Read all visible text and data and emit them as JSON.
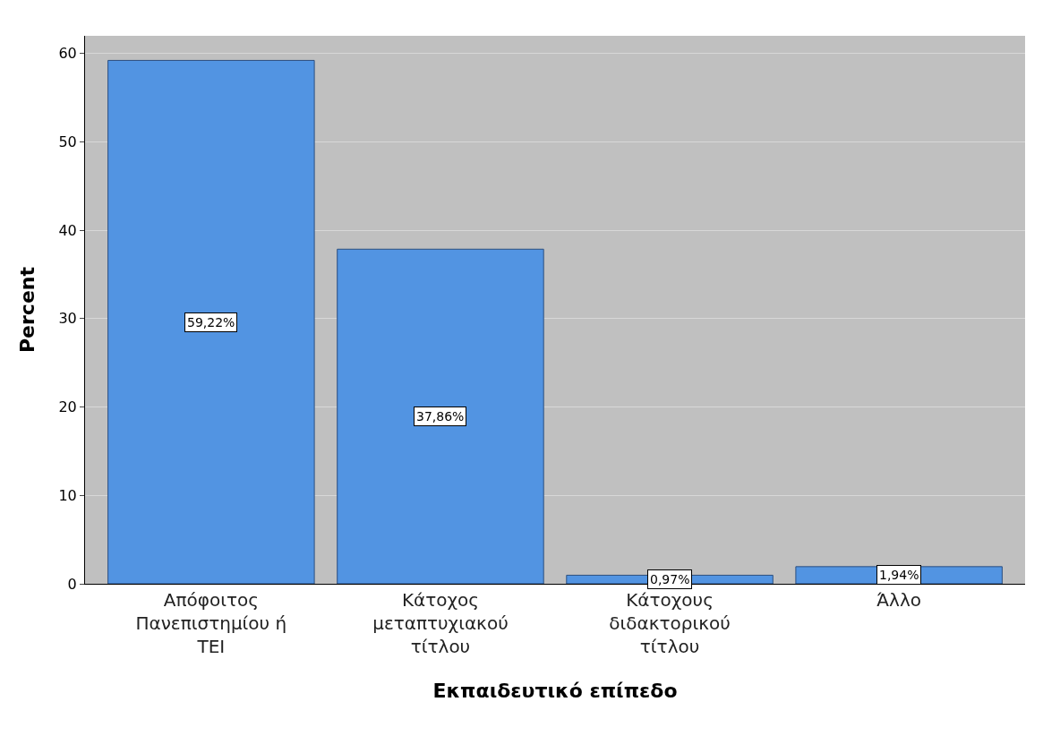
{
  "chart_data": {
    "type": "bar",
    "xlabel": "Εκπαιδευτικό επίπεδο",
    "ylabel": "Percent",
    "categories": [
      "Απόφοιτος Πανεπιστημίου ή ΤΕΙ",
      "Κάτοχος μεταπτυχιακού τίτλου",
      "Κάτοχους διδακτορικού τίτλου",
      "Άλλο"
    ],
    "values": [
      59.22,
      37.86,
      0.97,
      1.94
    ],
    "value_labels": [
      "59,22%",
      "37,86%",
      "0,97%",
      "1,94%"
    ],
    "color": "#5294e2",
    "ylim": [
      0,
      62
    ],
    "yticks": [
      0,
      10,
      20,
      30,
      40,
      50,
      60
    ],
    "grid": "y"
  }
}
